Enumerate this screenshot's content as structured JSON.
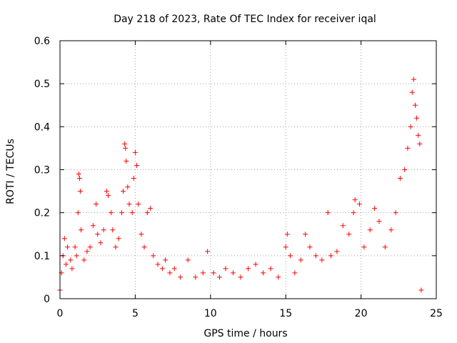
{
  "chart_data": {
    "type": "scatter",
    "title": "Day 218 of 2023, Rate Of TEC Index for receiver iqal",
    "xlabel": "GPS time / hours",
    "ylabel": "ROTI / TECUs",
    "xlim": [
      0,
      25
    ],
    "ylim": [
      0,
      0.6
    ],
    "xticks": [
      0,
      5,
      10,
      15,
      20,
      25
    ],
    "yticks": [
      0,
      0.1,
      0.2,
      0.3,
      0.4,
      0.5,
      0.6
    ],
    "xtick_labels": [
      "0",
      "5",
      "10",
      "15",
      "20",
      "25"
    ],
    "ytick_labels": [
      "0",
      "0.1",
      "0.2",
      "0.3",
      "0.4",
      "0.5",
      "0.6"
    ],
    "grid": true,
    "marker": "+",
    "color": "#ff0000",
    "series": [
      {
        "points": [
          [
            0.0,
            0.02
          ],
          [
            0.1,
            0.06
          ],
          [
            0.2,
            0.1
          ],
          [
            0.3,
            0.14
          ],
          [
            0.4,
            0.08
          ],
          [
            0.5,
            0.12
          ],
          [
            0.7,
            0.09
          ],
          [
            0.8,
            0.07
          ],
          [
            1.0,
            0.12
          ],
          [
            1.1,
            0.1
          ],
          [
            1.2,
            0.2
          ],
          [
            1.25,
            0.29
          ],
          [
            1.3,
            0.28
          ],
          [
            1.35,
            0.25
          ],
          [
            1.4,
            0.16
          ],
          [
            1.6,
            0.09
          ],
          [
            1.8,
            0.11
          ],
          [
            2.0,
            0.12
          ],
          [
            2.2,
            0.17
          ],
          [
            2.4,
            0.22
          ],
          [
            2.5,
            0.15
          ],
          [
            2.7,
            0.13
          ],
          [
            2.9,
            0.16
          ],
          [
            3.1,
            0.25
          ],
          [
            3.2,
            0.24
          ],
          [
            3.4,
            0.2
          ],
          [
            3.5,
            0.16
          ],
          [
            3.7,
            0.12
          ],
          [
            3.9,
            0.14
          ],
          [
            4.1,
            0.2
          ],
          [
            4.2,
            0.25
          ],
          [
            4.3,
            0.36
          ],
          [
            4.35,
            0.35
          ],
          [
            4.4,
            0.32
          ],
          [
            4.5,
            0.26
          ],
          [
            4.6,
            0.22
          ],
          [
            4.8,
            0.2
          ],
          [
            4.9,
            0.28
          ],
          [
            5.0,
            0.34
          ],
          [
            5.1,
            0.31
          ],
          [
            5.2,
            0.22
          ],
          [
            5.4,
            0.15
          ],
          [
            5.6,
            0.12
          ],
          [
            5.8,
            0.2
          ],
          [
            6.0,
            0.21
          ],
          [
            6.2,
            0.1
          ],
          [
            6.5,
            0.08
          ],
          [
            6.8,
            0.07
          ],
          [
            7.0,
            0.09
          ],
          [
            7.3,
            0.06
          ],
          [
            7.6,
            0.07
          ],
          [
            8.0,
            0.05
          ],
          [
            8.5,
            0.09
          ],
          [
            9.0,
            0.05
          ],
          [
            9.5,
            0.06
          ],
          [
            9.8,
            0.11
          ],
          [
            10.2,
            0.06
          ],
          [
            10.6,
            0.05
          ],
          [
            11.0,
            0.07
          ],
          [
            11.5,
            0.06
          ],
          [
            12.0,
            0.05
          ],
          [
            12.5,
            0.07
          ],
          [
            13.0,
            0.08
          ],
          [
            13.5,
            0.06
          ],
          [
            14.0,
            0.07
          ],
          [
            14.5,
            0.05
          ],
          [
            15.0,
            0.12
          ],
          [
            15.1,
            0.15
          ],
          [
            15.3,
            0.1
          ],
          [
            15.6,
            0.06
          ],
          [
            16.0,
            0.09
          ],
          [
            16.3,
            0.15
          ],
          [
            16.6,
            0.12
          ],
          [
            17.0,
            0.1
          ],
          [
            17.4,
            0.09
          ],
          [
            17.8,
            0.2
          ],
          [
            18.0,
            0.1
          ],
          [
            18.4,
            0.11
          ],
          [
            18.8,
            0.17
          ],
          [
            19.2,
            0.15
          ],
          [
            19.5,
            0.2
          ],
          [
            19.6,
            0.23
          ],
          [
            19.9,
            0.22
          ],
          [
            20.2,
            0.12
          ],
          [
            20.6,
            0.16
          ],
          [
            20.9,
            0.21
          ],
          [
            21.2,
            0.18
          ],
          [
            21.6,
            0.12
          ],
          [
            22.0,
            0.16
          ],
          [
            22.3,
            0.2
          ],
          [
            22.6,
            0.28
          ],
          [
            22.9,
            0.3
          ],
          [
            23.1,
            0.35
          ],
          [
            23.3,
            0.4
          ],
          [
            23.4,
            0.48
          ],
          [
            23.5,
            0.51
          ],
          [
            23.6,
            0.45
          ],
          [
            23.7,
            0.42
          ],
          [
            23.8,
            0.38
          ],
          [
            23.9,
            0.36
          ],
          [
            24.0,
            0.02
          ]
        ]
      }
    ]
  }
}
